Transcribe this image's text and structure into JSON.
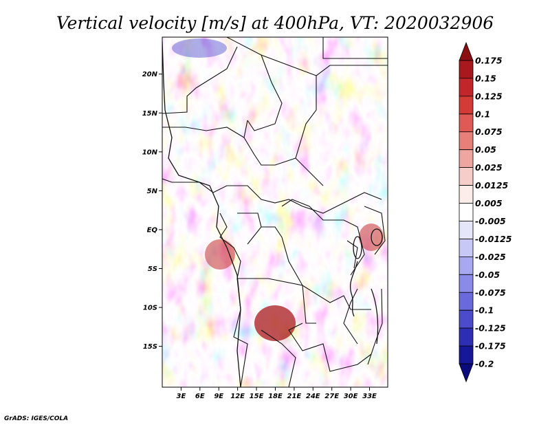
{
  "title": "Vertical velocity [m/s] at 400hPa, VT: 2020032906",
  "credit": "GrADS: IGES/COLA",
  "map": {
    "lat_labels": [
      "20N",
      "15N",
      "10N",
      "5N",
      "EQ",
      "5S",
      "10S",
      "15S"
    ],
    "lat_values": [
      20,
      15,
      10,
      5,
      0,
      -5,
      -10,
      -15
    ],
    "lon_labels": [
      "3E",
      "6E",
      "9E",
      "12E",
      "15E",
      "18E",
      "21E",
      "24E",
      "27E",
      "30E",
      "33E"
    ],
    "lon_values": [
      3,
      6,
      9,
      12,
      15,
      18,
      21,
      24,
      27,
      30,
      33
    ]
  },
  "colorbar": {
    "labels": [
      "0.175",
      "0.15",
      "0.125",
      "0.1",
      "0.075",
      "0.05",
      "0.025",
      "0.0125",
      "0.005",
      "-0.005",
      "-0.0125",
      "-0.025",
      "-0.05",
      "-0.075",
      "-0.1",
      "-0.125",
      "-0.175",
      "-0.2"
    ],
    "colors": [
      "#8a0f12",
      "#a8181c",
      "#c2262a",
      "#d43a36",
      "#e05a55",
      "#e8807a",
      "#f0a6a0",
      "#f7cdca",
      "#fcecea",
      "#ffffff",
      "#e6e6fa",
      "#c8c8f6",
      "#a8a8f0",
      "#8a8ae8",
      "#6a6adc",
      "#4b4bcc",
      "#2e2eb4",
      "#17179a",
      "#0b0b7e"
    ]
  }
}
